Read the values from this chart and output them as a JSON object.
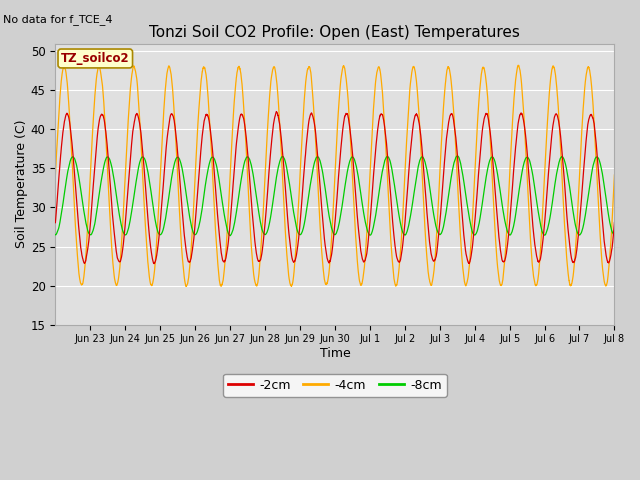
{
  "title": "Tonzi Soil CO2 Profile: Open (East) Temperatures",
  "no_data_text": "No data for f_TCE_4",
  "xlabel": "Time",
  "ylabel": "Soil Temperature (C)",
  "ylim": [
    15,
    51
  ],
  "yticks": [
    15,
    20,
    25,
    30,
    35,
    40,
    45,
    50
  ],
  "fig_bg_color": "#d0d0d0",
  "plot_bg_color": "#e0e0e0",
  "grid_color": "#ffffff",
  "legend_label": "TZ_soilco2",
  "legend_bg": "#ffffcc",
  "legend_border": "#aa8800",
  "series": [
    {
      "label": "-2cm",
      "color": "#dd0000"
    },
    {
      "label": "-4cm",
      "color": "#ffaa00"
    },
    {
      "label": "-8cm",
      "color": "#00cc00"
    }
  ],
  "x_tick_labels": [
    "Jun 23",
    "Jun 24",
    "Jun 25",
    "Jun 26",
    "Jun 27",
    "Jun 28",
    "Jun 29",
    "Jun 30",
    "Jul 1",
    "Jul 2",
    "Jul 3",
    "Jul 4",
    "Jul 5",
    "Jul 6",
    "Jul 7",
    "Jul 8"
  ]
}
